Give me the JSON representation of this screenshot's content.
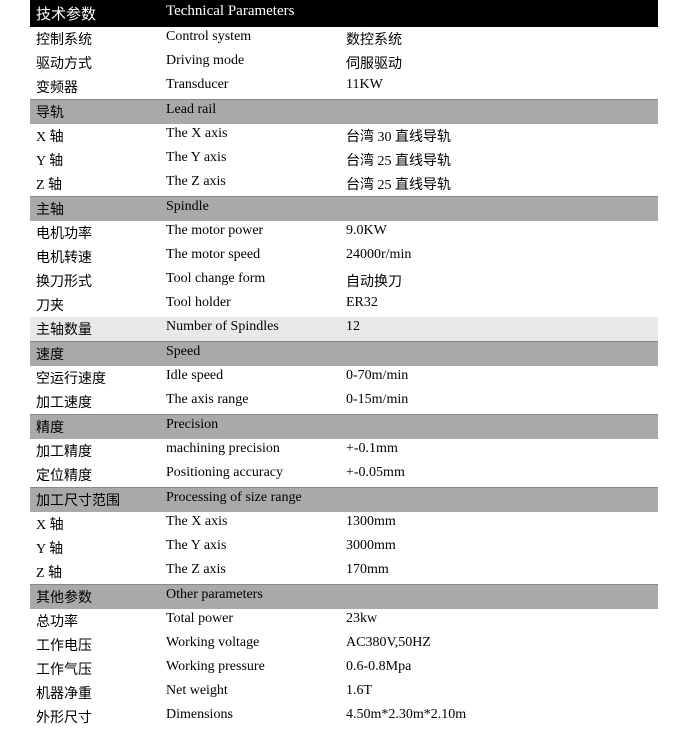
{
  "colors": {
    "header_bg": "#000000",
    "header_fg": "#ffffff",
    "section_bg": "#a9a9a9",
    "alt_row_bg": "#e9e9e9",
    "text": "#000000",
    "page_bg": "#ffffff"
  },
  "header": {
    "cn": "技术参数",
    "en": "Technical Parameters"
  },
  "sections": [
    {
      "rows": [
        {
          "cn": "控制系统",
          "en": "Control system",
          "val": "数控系统"
        },
        {
          "cn": "驱动方式",
          "en": "Driving mode",
          "val": "伺服驱动"
        },
        {
          "cn": "变频器",
          "en": "Transducer",
          "val": "11KW"
        }
      ]
    },
    {
      "title": {
        "cn": "导轨",
        "en": "Lead rail"
      },
      "rows": [
        {
          "cn": "X 轴",
          "en": "The X axis",
          "val": "台湾 30 直线导轨"
        },
        {
          "cn": "Y 轴",
          "en": "The Y axis",
          "val": "台湾 25 直线导轨"
        },
        {
          "cn": "Z 轴",
          "en": "The Z axis",
          "val": "台湾 25 直线导轨"
        }
      ]
    },
    {
      "title": {
        "cn": "主轴",
        "en": "Spindle"
      },
      "rows": [
        {
          "cn": "电机功率",
          "en": "The motor power",
          "val": "9.0KW"
        },
        {
          "cn": "电机转速",
          "en": "The motor speed",
          "val": "24000r/min"
        },
        {
          "cn": "换刀形式",
          "en": "Tool change form",
          "val": "自动换刀"
        },
        {
          "cn": "刀夹",
          "en": "Tool holder",
          "val": "ER32"
        },
        {
          "cn": "主轴数量",
          "en": "Number of Spindles",
          "val": "12",
          "alt": true
        }
      ]
    },
    {
      "title": {
        "cn": "速度",
        "en": " Speed"
      },
      "rows": [
        {
          "cn": "空运行速度",
          "en": "Idle speed",
          "val": "0-70m/min"
        },
        {
          "cn": "加工速度",
          "en": "The axis range",
          "val": "0-15m/min"
        }
      ]
    },
    {
      "title": {
        "cn": "精度",
        "en": " Precision"
      },
      "rows": [
        {
          "cn": "加工精度",
          "en": "machining precision",
          "val": "+-0.1mm"
        },
        {
          "cn": "定位精度",
          "en": "Positioning accuracy",
          "val": "+-0.05mm"
        }
      ]
    },
    {
      "title": {
        "cn": "加工尺寸范围",
        "en": "Processing of size range"
      },
      "rows": [
        {
          "cn": "X 轴",
          "en": "The X axis",
          "val": "1300mm"
        },
        {
          "cn": "Y 轴",
          "en": "The Y axis",
          "val": "3000mm"
        },
        {
          "cn": "Z 轴",
          "en": "The Z axis",
          "val": "170mm"
        }
      ]
    },
    {
      "title": {
        "cn": "其他参数",
        "en": "Other parameters"
      },
      "rows": [
        {
          "cn": "总功率",
          "en": "Total power",
          "val": "23kw"
        },
        {
          "cn": "工作电压",
          "en": "Working voltage",
          "val": "AC380V,50HZ"
        },
        {
          "cn": "工作气压",
          "en": "Working pressure",
          "val": "0.6-0.8Mpa"
        },
        {
          "cn": "机器净重",
          "en": "Net weight",
          "val": "1.6T"
        },
        {
          "cn": "外形尺寸",
          "en": "Dimensions",
          "val": "4.50m*2.30m*2.10m"
        }
      ]
    }
  ]
}
